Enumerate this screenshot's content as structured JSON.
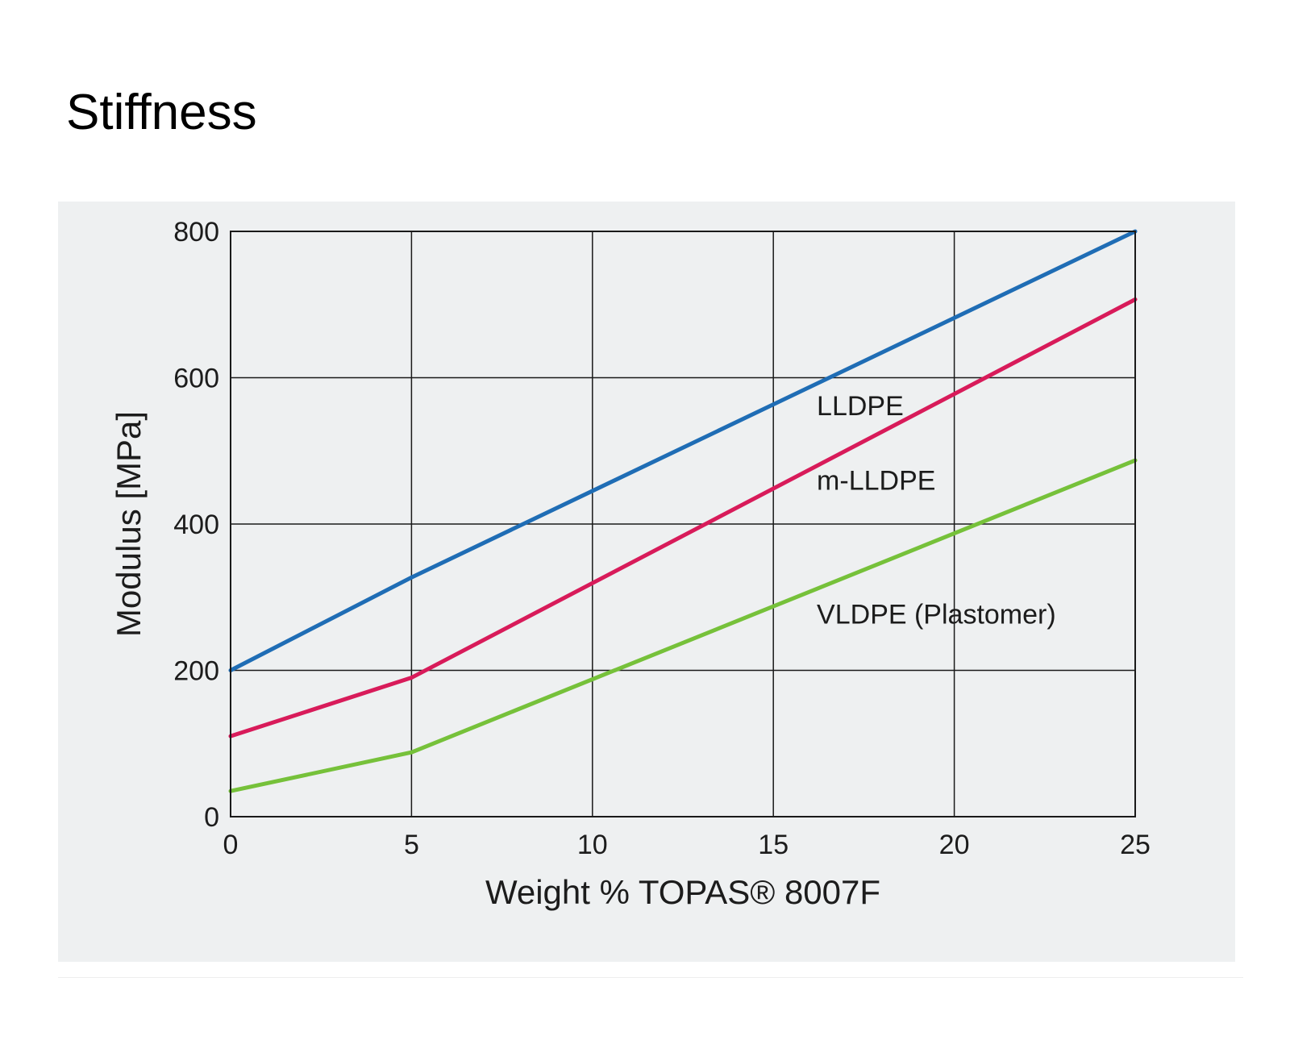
{
  "page": {
    "heading": "Stiffness"
  },
  "chart_data": {
    "type": "line",
    "title": "",
    "xlabel": "Weight % TOPAS® 8007F",
    "ylabel": "Modulus [MPa]",
    "xlim": [
      0,
      25
    ],
    "ylim": [
      0,
      800
    ],
    "x_ticks": [
      0,
      5,
      10,
      15,
      20,
      25
    ],
    "y_ticks": [
      0,
      200,
      400,
      600,
      800
    ],
    "grid": true,
    "series": [
      {
        "name": "LLDPE",
        "color": "#1f6db5",
        "points": [
          [
            0,
            200
          ],
          [
            5,
            327
          ],
          [
            25,
            800
          ]
        ],
        "label_anchor": [
          16.2,
          560
        ]
      },
      {
        "name": "m-LLDPE",
        "color": "#d81b5a",
        "points": [
          [
            0,
            110
          ],
          [
            5,
            190
          ],
          [
            25,
            707
          ]
        ],
        "label_anchor": [
          16.2,
          458
        ]
      },
      {
        "name": "VLDPE (Plastomer)",
        "color": "#76c13a",
        "points": [
          [
            0,
            35
          ],
          [
            5,
            88
          ],
          [
            25,
            487
          ]
        ],
        "label_anchor": [
          16.2,
          275
        ]
      }
    ]
  }
}
